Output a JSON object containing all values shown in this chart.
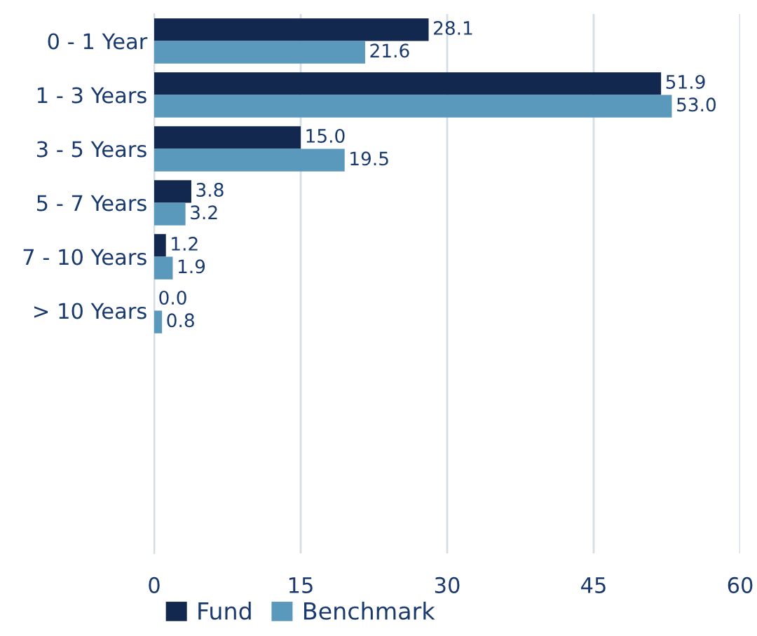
{
  "chart_data": {
    "type": "bar",
    "orientation": "horizontal",
    "categories": [
      "0 - 1 Year",
      "1 - 3 Years",
      "3 - 5 Years",
      "5 - 7 Years",
      "7 - 10 Years",
      "> 10 Years",
      null,
      null,
      null,
      null
    ],
    "series": [
      {
        "name": "Fund",
        "color": "#13284f",
        "values": [
          28.1,
          51.9,
          15.0,
          3.8,
          1.2,
          0.0,
          null,
          null,
          null,
          null
        ],
        "value_labels": [
          "28.1",
          "51.9",
          "15.0",
          "3.8",
          "1.2",
          "0.0",
          null,
          null,
          null,
          null
        ]
      },
      {
        "name": "Benchmark",
        "color": "#5a99bb",
        "values": [
          21.6,
          53.0,
          19.5,
          3.2,
          1.9,
          0.8,
          null,
          null,
          null,
          null
        ],
        "value_labels": [
          "21.6",
          "53.0",
          "19.5",
          "3.2",
          "1.9",
          "0.8",
          null,
          null,
          null,
          null
        ]
      }
    ],
    "xlim": [
      0,
      60
    ],
    "xticks": [
      0,
      15,
      30,
      45,
      60
    ],
    "grid": "x",
    "legend": "bottom"
  }
}
